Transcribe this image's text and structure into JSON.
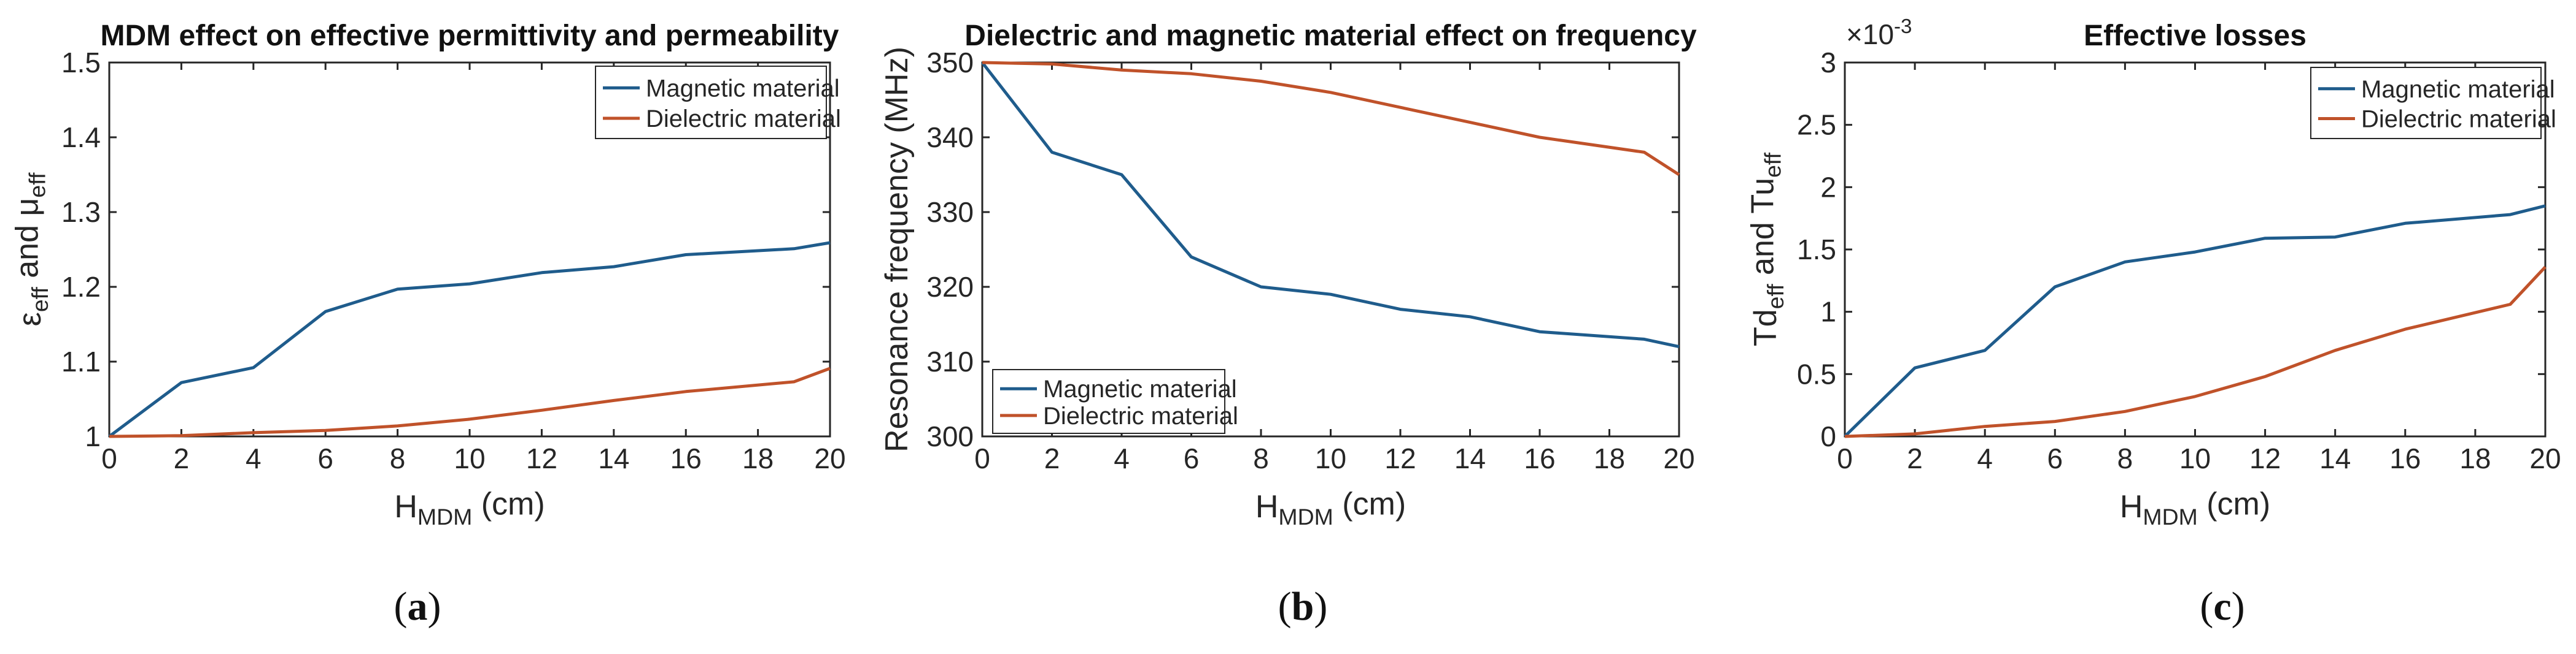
{
  "chart_data": [
    {
      "type": "line",
      "panel": "(a)",
      "title": "MDM effect on effective permittivity and permeability",
      "xlabel": "H_MDM (cm)",
      "ylabel": "ε_eff and μ_eff",
      "xlim": [
        0,
        20
      ],
      "ylim": [
        1,
        1.5
      ],
      "xticks": [
        0,
        2,
        4,
        6,
        8,
        10,
        12,
        14,
        16,
        18,
        20
      ],
      "yticks": [
        1,
        1.1,
        1.2,
        1.3,
        1.4,
        1.5
      ],
      "ytick_labels": [
        "1",
        "1.1",
        "1.2",
        "1.3",
        "1.4",
        "1.5"
      ],
      "grid": false,
      "legend_position": "top-right",
      "x": [
        0,
        2,
        4,
        6,
        8,
        10,
        12,
        14,
        16,
        19,
        20
      ],
      "series": [
        {
          "name": "Magnetic material",
          "color": "#1f5c8c",
          "values": [
            1.0,
            1.072,
            1.092,
            1.167,
            1.197,
            1.204,
            1.219,
            1.227,
            1.243,
            1.251,
            1.259
          ]
        },
        {
          "name": "Dielectric material",
          "color": "#c0522a",
          "values": [
            1.0,
            1.001,
            1.005,
            1.008,
            1.014,
            1.023,
            1.035,
            1.048,
            1.06,
            1.073,
            1.091
          ]
        }
      ]
    },
    {
      "type": "line",
      "panel": "(b)",
      "title": "Dielectric and magnetic material effect on frequency",
      "xlabel": "H_MDM (cm)",
      "ylabel": "Resonance frequency (MHz)",
      "xlim": [
        0,
        20
      ],
      "ylim": [
        300,
        350
      ],
      "xticks": [
        0,
        2,
        4,
        6,
        8,
        10,
        12,
        14,
        16,
        18,
        20
      ],
      "yticks": [
        300,
        310,
        320,
        330,
        340,
        350
      ],
      "ytick_labels": [
        "300",
        "310",
        "320",
        "330",
        "340",
        "350"
      ],
      "grid": false,
      "legend_position": "bottom-left",
      "x": [
        0,
        2,
        4,
        6,
        8,
        10,
        12,
        14,
        16,
        19,
        20
      ],
      "series": [
        {
          "name": "Magnetic material",
          "color": "#1f5c8c",
          "values": [
            350,
            338,
            335,
            324,
            320,
            319,
            317,
            316,
            314,
            313,
            312
          ]
        },
        {
          "name": "Dielectric material",
          "color": "#c0522a",
          "values": [
            350,
            349.8,
            349,
            348.5,
            347.5,
            346,
            344,
            342,
            340,
            338,
            335
          ]
        }
      ]
    },
    {
      "type": "line",
      "panel": "(c)",
      "title": "Effective losses",
      "xlabel": "H_MDM (cm)",
      "ylabel": "Td_eff and Tu_eff",
      "y_exponent": "×10-3",
      "xlim": [
        0,
        20
      ],
      "ylim": [
        0,
        0.003
      ],
      "xticks": [
        0,
        2,
        4,
        6,
        8,
        10,
        12,
        14,
        16,
        18,
        20
      ],
      "yticks": [
        0,
        0.0005,
        0.001,
        0.0015,
        0.002,
        0.0025,
        0.003
      ],
      "ytick_labels": [
        "0",
        "0.5",
        "1",
        "1.5",
        "2",
        "2.5",
        "3"
      ],
      "grid": false,
      "legend_position": "top-right",
      "x": [
        0,
        2,
        4,
        6,
        8,
        10,
        12,
        14,
        16,
        19,
        20
      ],
      "series": [
        {
          "name": "Magnetic material",
          "color": "#1f5c8c",
          "values": [
            0,
            0.00055,
            0.00069,
            0.0012,
            0.0014,
            0.00148,
            0.00159,
            0.0016,
            0.00171,
            0.00178,
            0.00185
          ]
        },
        {
          "name": "Dielectric material",
          "color": "#c0522a",
          "values": [
            0,
            2e-05,
            8e-05,
            0.00012,
            0.0002,
            0.00032,
            0.00048,
            0.00069,
            0.00086,
            0.00106,
            0.00136
          ]
        }
      ]
    }
  ],
  "panel_labels": [
    "(a)",
    "(b)",
    "(c)"
  ]
}
